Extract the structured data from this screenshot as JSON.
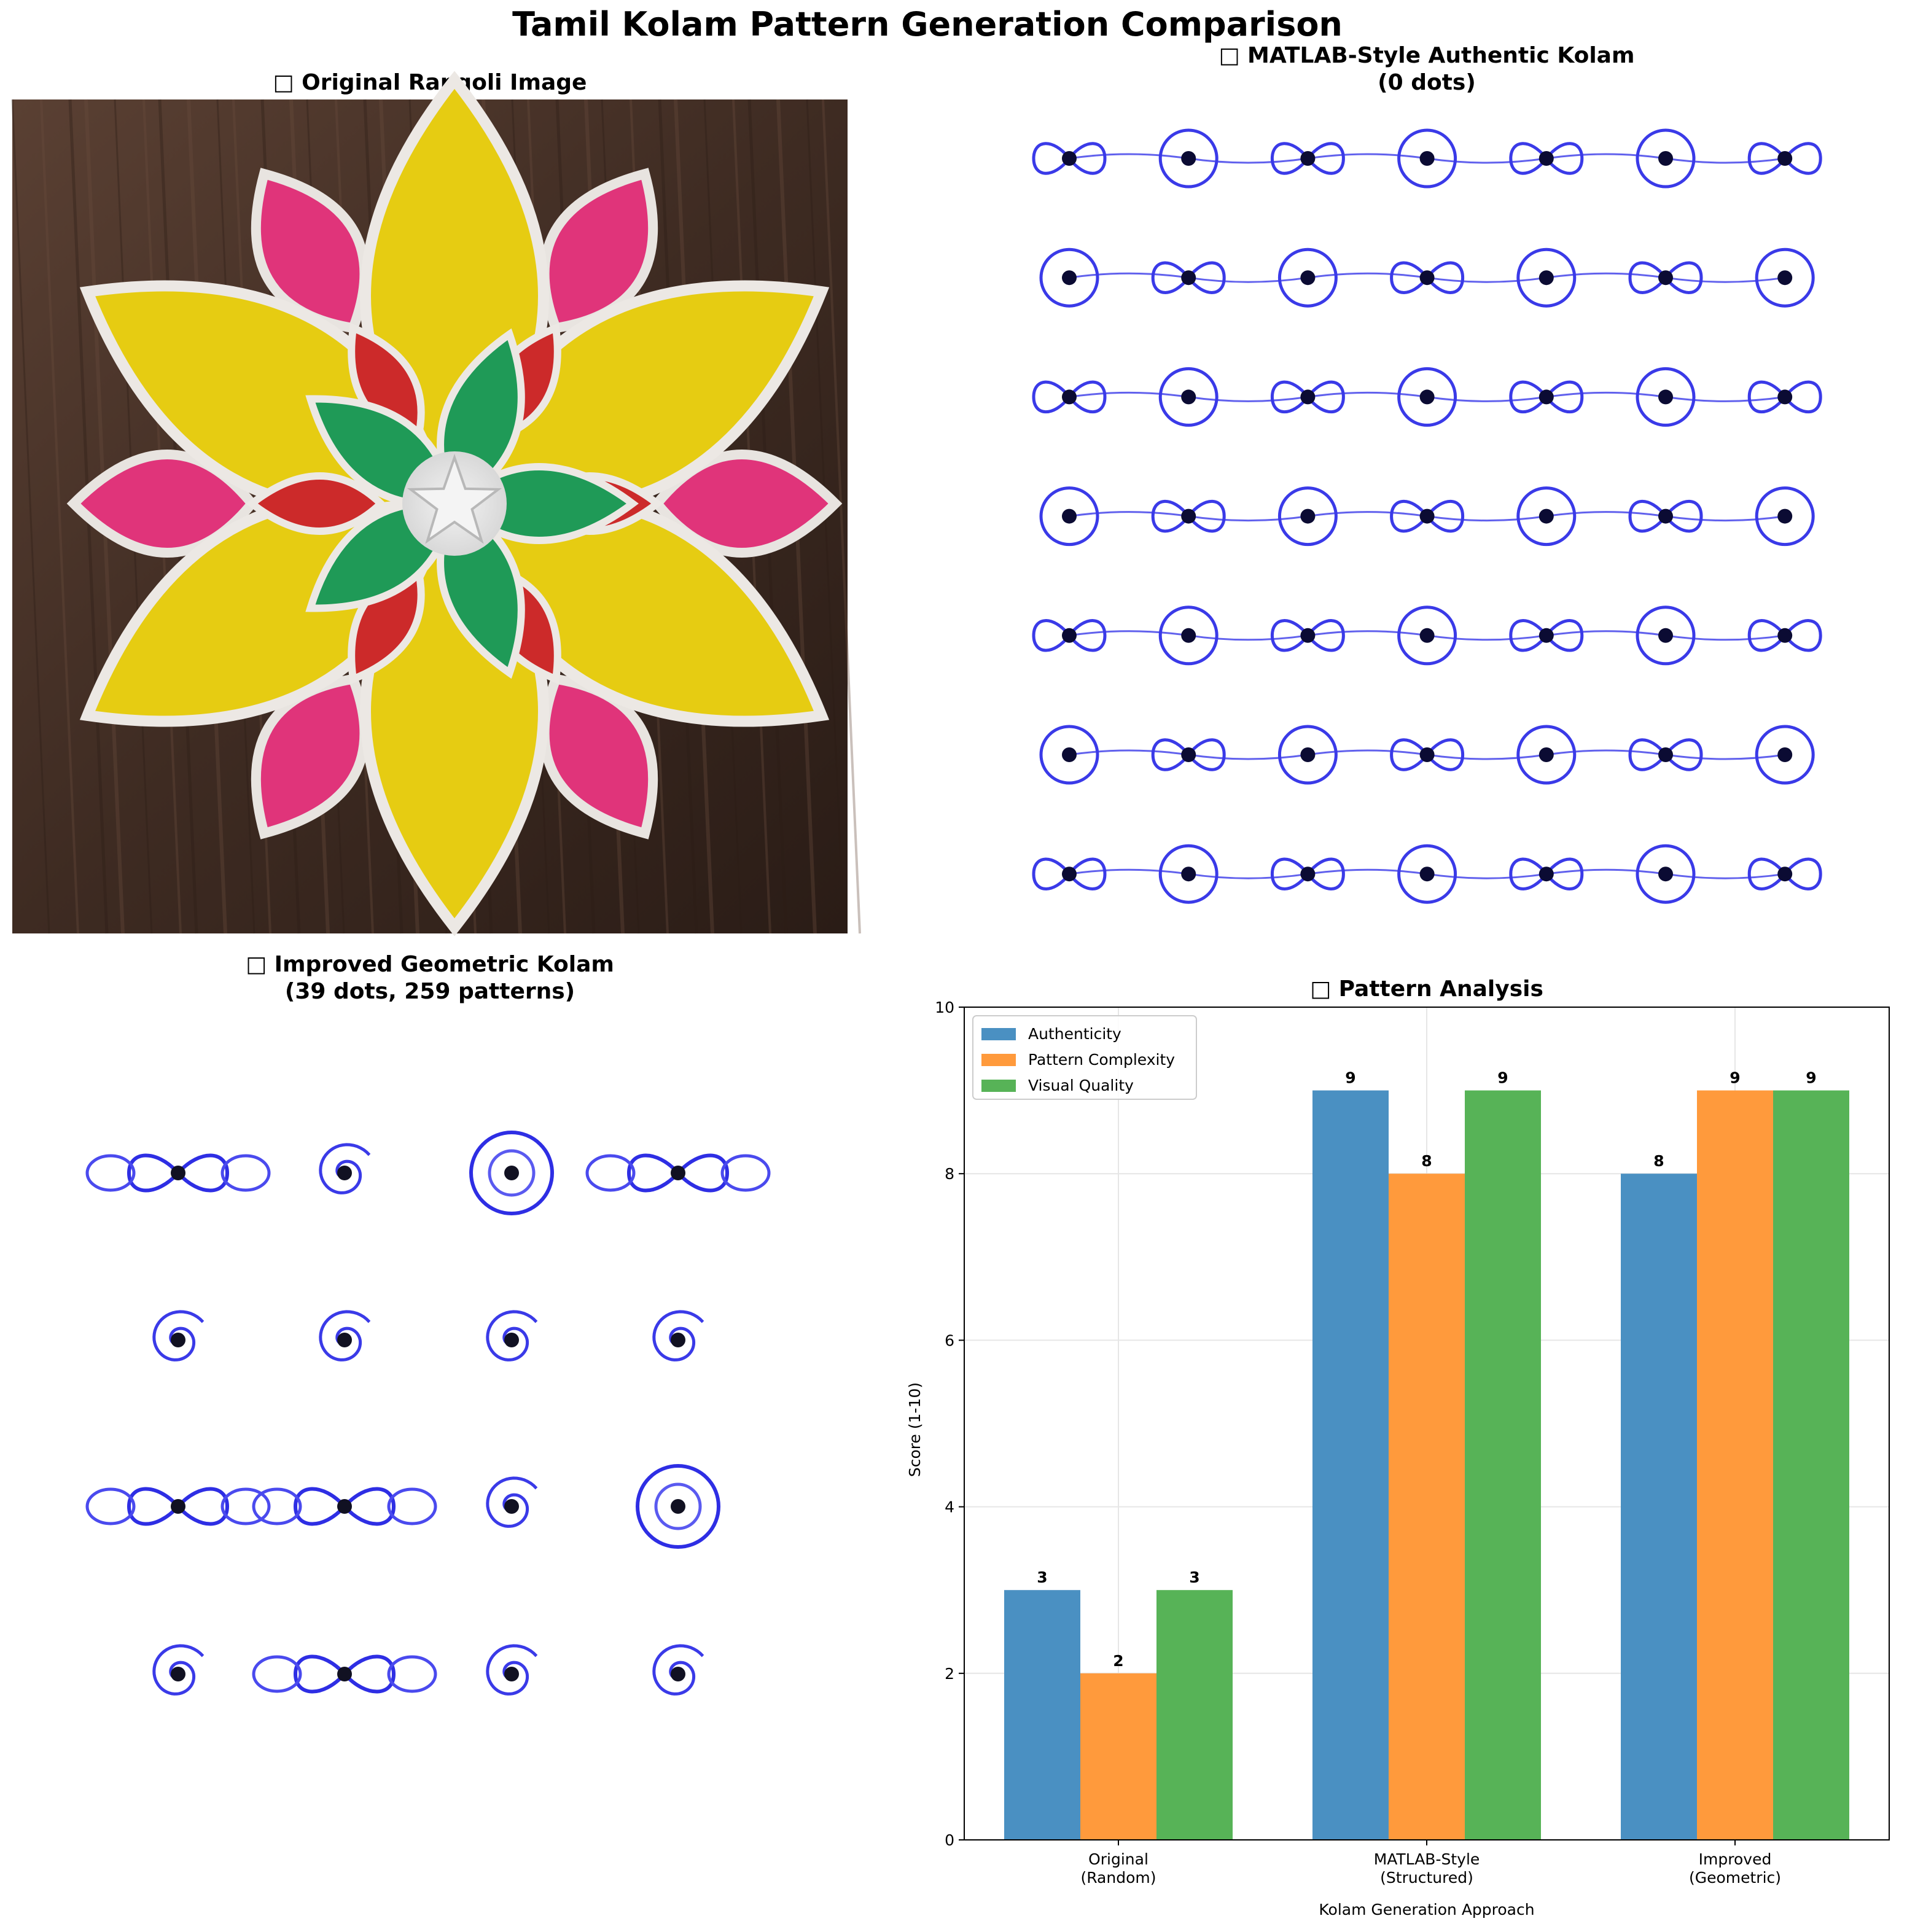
{
  "figure": {
    "suptitle": "Tamil Kolam Pattern Generation Comparison"
  },
  "panels": {
    "original": {
      "title": "□ Original Rangoli Image"
    },
    "matlab": {
      "title_line1": "□ MATLAB-Style Authentic Kolam",
      "title_line2": "(0 dots)",
      "grid_rows": 7,
      "grid_cols": 7,
      "colors": {
        "stroke": "#3a3ae8",
        "dot": "#0b0b33"
      }
    },
    "improved": {
      "title_line1": "□ Improved Geometric Kolam",
      "title_line2": "(39 dots, 259 patterns)",
      "rows": [
        [
          "bowtie",
          "spiral",
          "circle",
          "bowtie"
        ],
        [
          "spiral",
          "spiral",
          "spiral",
          "spiral"
        ],
        [
          "bowtie",
          "bowtie",
          "spiral",
          "circle"
        ],
        [
          "spiral",
          "bowtie",
          "spiral",
          "spiral"
        ]
      ]
    }
  },
  "chart_data": {
    "type": "bar",
    "title": "□ Pattern Analysis",
    "xlabel": "Kolam Generation Approach",
    "ylabel": "Score (1-10)",
    "ylim": [
      0,
      10
    ],
    "yticks": [
      0,
      2,
      4,
      6,
      8,
      10
    ],
    "categories": [
      [
        "Original",
        "(Random)"
      ],
      [
        "MATLAB-Style",
        "(Structured)"
      ],
      [
        "Improved",
        "(Geometric)"
      ]
    ],
    "series": [
      {
        "name": "Authenticity",
        "values": [
          3,
          9,
          8
        ],
        "color": "#4a90c2"
      },
      {
        "name": "Pattern Complexity",
        "values": [
          2,
          8,
          9
        ],
        "color": "#ff9a3c"
      },
      {
        "name": "Visual Quality",
        "values": [
          3,
          9,
          9
        ],
        "color": "#57b357"
      }
    ],
    "grid": true,
    "legend": "upper-left"
  }
}
